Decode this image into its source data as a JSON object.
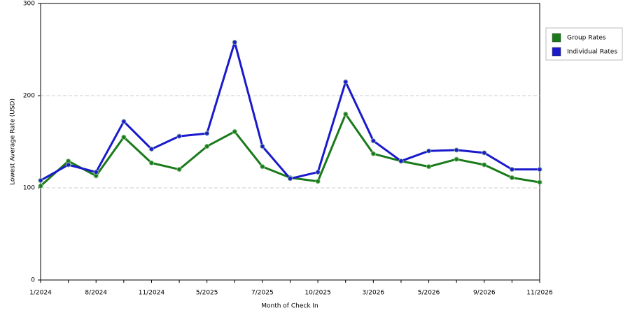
{
  "chart_data": {
    "type": "line",
    "x_label": "Month of Check In",
    "y_label": "Lowest Average Rate (USD)",
    "categories": [
      "1/2024",
      null,
      "8/2024",
      null,
      "11/2024",
      null,
      "5/2025",
      null,
      "7/2025",
      null,
      "10/2025",
      null,
      "3/2026",
      null,
      "5/2026",
      null,
      "9/2026",
      null,
      "11/2026"
    ],
    "series": [
      {
        "name": "Group Rates",
        "color": "#1a7a1a",
        "values": [
          102,
          129,
          113,
          155,
          127,
          120,
          145,
          161,
          123,
          111,
          107,
          180,
          137,
          129,
          123,
          131,
          125,
          111,
          106
        ]
      },
      {
        "name": "Individual Rates",
        "color": "#1a1acc",
        "values": [
          108,
          125,
          117,
          172,
          142,
          156,
          159,
          258,
          145,
          110,
          117,
          215,
          151,
          129,
          140,
          141,
          138,
          120,
          120
        ]
      }
    ],
    "ylim": [
      0,
      300
    ],
    "yticks": [
      0,
      100,
      200,
      300
    ],
    "grid": true,
    "legend": "right"
  }
}
